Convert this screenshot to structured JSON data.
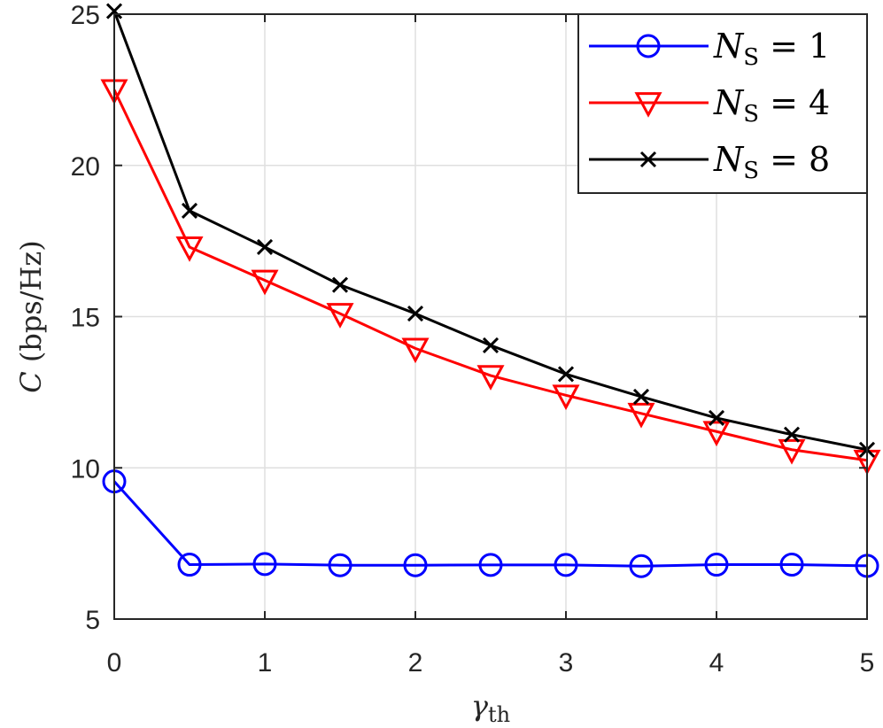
{
  "chart_data": {
    "type": "line",
    "title": "",
    "xlabel": {
      "symbol": "γ",
      "sub": "th"
    },
    "ylabel": {
      "symbol": "C",
      "unit": "(bps/Hz)"
    },
    "xlim": [
      0,
      5
    ],
    "ylim": [
      5,
      25
    ],
    "xticks": [
      "0",
      "1",
      "2",
      "3",
      "4",
      "5"
    ],
    "yticks": [
      "5",
      "10",
      "15",
      "20",
      "25"
    ],
    "xtick_values": [
      0,
      1,
      2,
      3,
      4,
      5
    ],
    "ytick_values": [
      5,
      10,
      15,
      20,
      25
    ],
    "grid": true,
    "legend_position": "top-right",
    "x": [
      0,
      0.5,
      1,
      1.5,
      2,
      2.5,
      3,
      3.5,
      4,
      4.5,
      5
    ],
    "series": [
      {
        "name": {
          "symbol": "N",
          "sub": "S",
          "rest": " = 1"
        },
        "color": "#0000ff",
        "marker": "circle",
        "values": [
          9.55,
          6.8,
          6.82,
          6.78,
          6.78,
          6.79,
          6.79,
          6.75,
          6.8,
          6.8,
          6.76
        ]
      },
      {
        "name": {
          "symbol": "N",
          "sub": "S",
          "rest": " = 4"
        },
        "color": "#ff0000",
        "marker": "triangle-down",
        "values": [
          22.5,
          17.3,
          16.2,
          15.1,
          13.95,
          13.05,
          12.4,
          11.8,
          11.2,
          10.6,
          10.25
        ]
      },
      {
        "name": {
          "symbol": "N",
          "sub": "S",
          "rest": " = 8"
        },
        "color": "#000000",
        "marker": "x",
        "values": [
          25.1,
          18.5,
          17.3,
          16.05,
          15.1,
          14.05,
          13.1,
          12.35,
          11.65,
          11.1,
          10.6
        ]
      }
    ]
  }
}
